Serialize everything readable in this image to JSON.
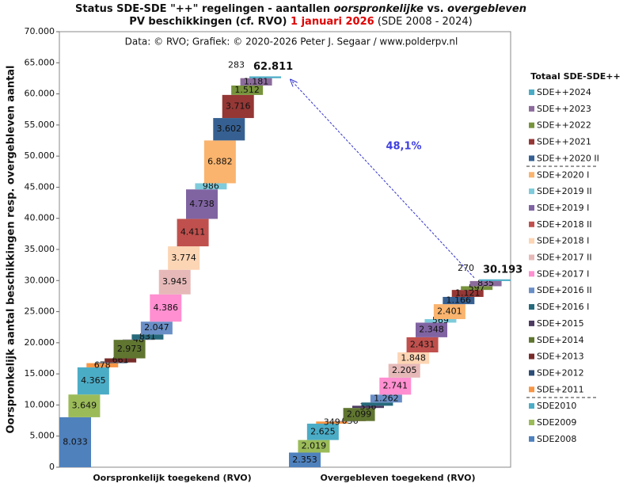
{
  "chart_data": {
    "type": "waterfall",
    "title_lines": [
      [
        "Status SDE-SDE \"++\" regelingen - aantallen ",
        "oorspronkelijke",
        " vs. ",
        "overgebleven"
      ],
      [
        "PV beschikkingen  (cf. RVO) ",
        "1 januari 2026",
        " (SDE 2008 - 2024)"
      ]
    ],
    "subtitle": "Data: © RVO;  Grafiek:  © 2020-2026 Peter J. Segaar / www.polderpv.nl",
    "y_label": "Oorspronkelijk  aantal beschikkingen  resp. overgebleven aantal",
    "legend_title": "Totaal SDE-SDE++",
    "categories": [
      "Oorspronkelijk toegekend (RVO)",
      "Overgebleven toegekend (RVO)"
    ],
    "ylim": [
      0,
      70000
    ],
    "yticks": [
      {
        "value": 0,
        "label": "0"
      },
      {
        "value": 5000,
        "label": "5.000"
      },
      {
        "value": 10000,
        "label": "10.000"
      },
      {
        "value": 15000,
        "label": "15.000"
      },
      {
        "value": 20000,
        "label": "20.000"
      },
      {
        "value": 25000,
        "label": "25.000"
      },
      {
        "value": 30000,
        "label": "30.000"
      },
      {
        "value": 35000,
        "label": "35.000"
      },
      {
        "value": 40000,
        "label": "40.000"
      },
      {
        "value": 45000,
        "label": "45.000"
      },
      {
        "value": 50000,
        "label": "50.000"
      },
      {
        "value": 55000,
        "label": "55.000"
      },
      {
        "value": 60000,
        "label": "60.000"
      },
      {
        "value": 65000,
        "label": "65.000"
      },
      {
        "value": 70000,
        "label": "70.000"
      }
    ],
    "grid": false,
    "series": [
      {
        "name": "SDE2008",
        "color": "#4f81bd",
        "values": [
          8033,
          2353
        ],
        "value_labels": [
          "8.033",
          "2.353"
        ]
      },
      {
        "name": "SDE2009",
        "color": "#9bbb59",
        "values": [
          3649,
          2019
        ],
        "value_labels": [
          "3.649",
          "2.019"
        ]
      },
      {
        "name": "SDE2010",
        "color": "#4bacc6",
        "values": [
          4365,
          2625
        ],
        "value_labels": [
          "4.365",
          "2.625"
        ]
      },
      {
        "name": "SDE+2011",
        "color": "#f79646",
        "values": [
          678,
          349
        ],
        "value_labels": [
          "678",
          "349"
        ]
      },
      {
        "name": "SDE+2012",
        "color": "#2c4d75",
        "values": [
          110,
          40
        ],
        "value_labels": [
          null,
          null
        ]
      },
      {
        "name": "SDE+2013",
        "color": "#772c2a",
        "values": [
          661,
          36
        ],
        "value_labels": [
          "661",
          "036"
        ]
      },
      {
        "name": "SDE+2014",
        "color": "#5f7530",
        "values": [
          2973,
          2099
        ],
        "value_labels": [
          "2.973",
          "2.099"
        ]
      },
      {
        "name": "SDE+2015",
        "color": "#4d3b62",
        "values": [
          48,
          356
        ],
        "value_labels": [
          "48",
          "356"
        ]
      },
      {
        "name": "SDE+2016 I",
        "color": "#276a7c",
        "values": [
          831,
          522
        ],
        "value_labels": [
          "831",
          null
        ]
      },
      {
        "name": "SDE+2016 II",
        "color": "#6a8fc7",
        "values": [
          2047,
          1262
        ],
        "value_labels": [
          "2.047",
          "1.262"
        ]
      },
      {
        "name": "SDE+2017 I",
        "color": "#ff8fd0",
        "values": [
          4386,
          2741
        ],
        "value_labels": [
          "4.386",
          "2.741"
        ]
      },
      {
        "name": "SDE+2017 II",
        "color": "#e6b9b8",
        "values": [
          3945,
          2205
        ],
        "value_labels": [
          "3.945",
          "2.205"
        ]
      },
      {
        "name": "SDE+2018 I",
        "color": "#fcd5b4",
        "values": [
          3774,
          1848
        ],
        "value_labels": [
          "3.774",
          "1.848"
        ]
      },
      {
        "name": "SDE+2018 II",
        "color": "#c0504d",
        "values": [
          4411,
          2431
        ],
        "value_labels": [
          "4.411",
          "2.431"
        ]
      },
      {
        "name": "SDE+2019 I",
        "color": "#8064a2",
        "values": [
          4738,
          2348
        ],
        "value_labels": [
          "4.738",
          "2.348"
        ]
      },
      {
        "name": "SDE+2019 II",
        "color": "#7ecbdb",
        "values": [
          986,
          569
        ],
        "value_labels": [
          "986",
          "569"
        ]
      },
      {
        "name": "SDE+2020 I",
        "color": "#fab46e",
        "values": [
          6882,
          2401
        ],
        "value_labels": [
          "6.882",
          "2.401"
        ]
      },
      {
        "name": "SDE++2020 II",
        "color": "#366092",
        "values": [
          3602,
          1166
        ],
        "value_labels": [
          "3.602",
          "1.166"
        ]
      },
      {
        "name": "SDE++2021",
        "color": "#953735",
        "values": [
          3716,
          1121
        ],
        "value_labels": [
          "3.716",
          "1.121"
        ]
      },
      {
        "name": "SDE++2022",
        "color": "#77933c",
        "values": [
          1512,
          597
        ],
        "value_labels": [
          "1.512",
          "597"
        ]
      },
      {
        "name": "SDE++2023",
        "color": "#8c6c9c",
        "values": [
          1181,
          835
        ],
        "value_labels": [
          "1.181",
          "835"
        ]
      },
      {
        "name": "SDE++2024",
        "color": "#4bacc6",
        "values": [
          283,
          270
        ],
        "value_labels": [
          "283",
          "270"
        ]
      }
    ],
    "totals": [
      62811,
      30193
    ],
    "total_labels": [
      "62.811",
      "30.193"
    ],
    "annotation": "48,1%"
  }
}
